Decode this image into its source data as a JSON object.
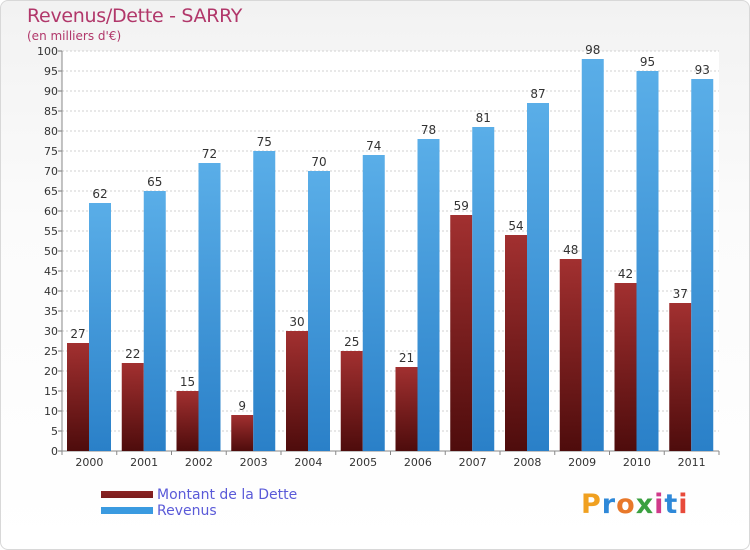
{
  "title": "Revenus/Dette - SARRY",
  "subtitle": "(en milliers d'€)",
  "logo": "Proxiti",
  "colors": {
    "dette": "#7a1c1c",
    "revenus": "#3a9ae0",
    "title": "#b1376a",
    "legend_text": "#5a5ad8"
  },
  "legend": {
    "dette_label": "Montant de la Dette",
    "revenus_label": "Revenus"
  },
  "chart_data": {
    "type": "bar",
    "title": "Revenus/Dette - SARRY",
    "ylabel": "(en milliers d'€)",
    "categories": [
      "2000",
      "2001",
      "2002",
      "2003",
      "2004",
      "2005",
      "2006",
      "2007",
      "2008",
      "2009",
      "2010",
      "2011"
    ],
    "ylim": [
      0,
      100
    ],
    "yticks": [
      0,
      5,
      10,
      15,
      20,
      25,
      30,
      35,
      40,
      45,
      50,
      55,
      60,
      65,
      70,
      75,
      80,
      85,
      90,
      95,
      100
    ],
    "grid": true,
    "legend_position": "bottom-left",
    "series": [
      {
        "name": "Montant de la Dette",
        "values": [
          27,
          22,
          15,
          9,
          30,
          25,
          21,
          59,
          54,
          48,
          42,
          37
        ]
      },
      {
        "name": "Revenus",
        "values": [
          62,
          65,
          72,
          75,
          70,
          74,
          78,
          81,
          87,
          98,
          95,
          93
        ]
      }
    ]
  }
}
